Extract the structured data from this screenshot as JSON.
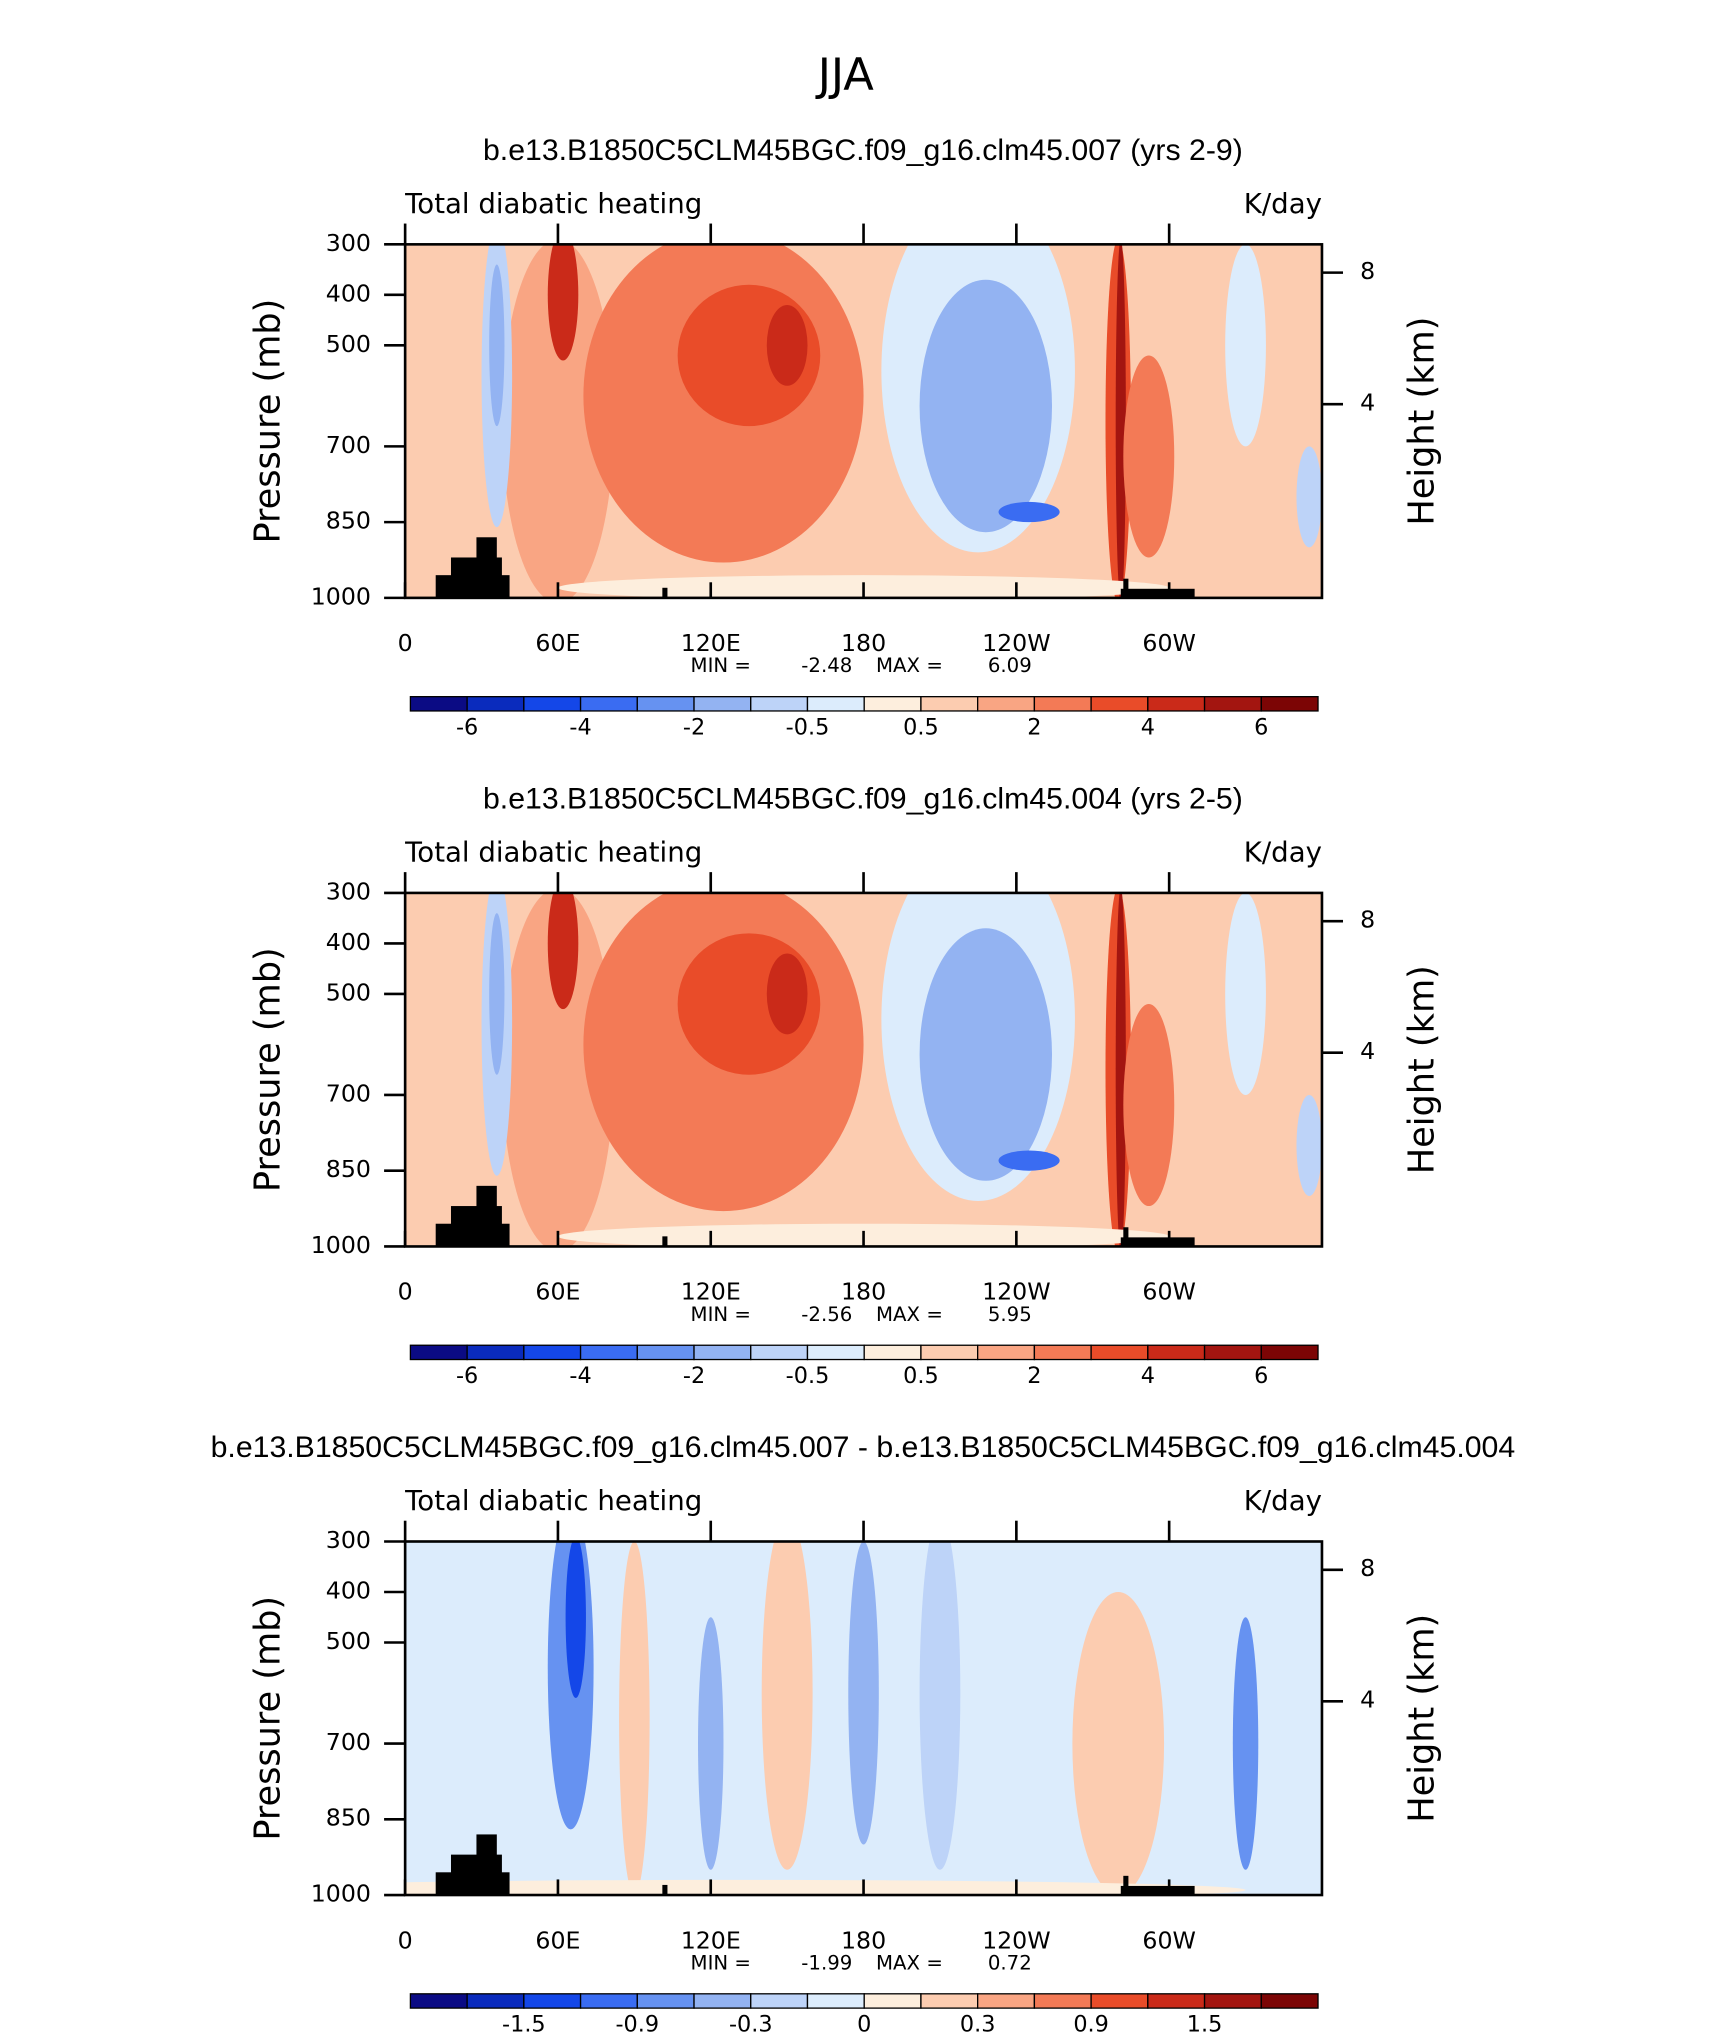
{
  "title": "JJA",
  "chart_data": [
    {
      "type": "contour",
      "title": "b.e13.B1850C5CLM45BGC.f09_g16.clm45.007 (yrs 2-9)",
      "left_label": "Total diabatic heating",
      "right_label": "K/day",
      "ylabel": "Pressure (mb)",
      "y2label": "Height (km)",
      "xlim": [
        0,
        360
      ],
      "xticks": [
        0,
        {
          "value": 60,
          "label": "60E"
        },
        {
          "value": 120,
          "label": "120E"
        },
        180,
        {
          "value": 240,
          "label": "120W"
        },
        {
          "value": 300,
          "label": "60W"
        }
      ],
      "ylim": [
        1000,
        300
      ],
      "yticks": [
        300,
        400,
        500,
        700,
        850,
        1000
      ],
      "y2ticks": [
        4,
        8
      ],
      "min_label": "MIN =",
      "min": -2.48,
      "max_label": "MAX =",
      "max": 6.09,
      "levels": [
        -6,
        -4,
        -2,
        -0.5,
        0.5,
        2,
        4,
        6
      ],
      "colors": [
        "#0b0b84",
        "#0a2bbd",
        "#1447e8",
        "#3a6cf2",
        "#6692f1",
        "#93b3f2",
        "#bdd3f8",
        "#dcecfc",
        "#fdeedd",
        "#fcccb0",
        "#f9a583",
        "#f37a56",
        "#e94c29",
        "#ca2a19",
        "#a31510",
        "#7c0505"
      ]
    },
    {
      "type": "contour",
      "title": "b.e13.B1850C5CLM45BGC.f09_g16.clm45.004 (yrs 2-5)",
      "left_label": "Total diabatic heating",
      "right_label": "K/day",
      "ylabel": "Pressure (mb)",
      "y2label": "Height (km)",
      "xlim": [
        0,
        360
      ],
      "xticks": [
        0,
        {
          "value": 60,
          "label": "60E"
        },
        {
          "value": 120,
          "label": "120E"
        },
        180,
        {
          "value": 240,
          "label": "120W"
        },
        {
          "value": 300,
          "label": "60W"
        }
      ],
      "ylim": [
        1000,
        300
      ],
      "yticks": [
        300,
        400,
        500,
        700,
        850,
        1000
      ],
      "y2ticks": [
        4,
        8
      ],
      "min_label": "MIN =",
      "min": -2.56,
      "max_label": "MAX =",
      "max": 5.95,
      "levels": [
        -6,
        -4,
        -2,
        -0.5,
        0.5,
        2,
        4,
        6
      ],
      "colors": [
        "#0b0b84",
        "#0a2bbd",
        "#1447e8",
        "#3a6cf2",
        "#6692f1",
        "#93b3f2",
        "#bdd3f8",
        "#dcecfc",
        "#fdeedd",
        "#fcccb0",
        "#f9a583",
        "#f37a56",
        "#e94c29",
        "#ca2a19",
        "#a31510",
        "#7c0505"
      ]
    },
    {
      "type": "contour",
      "title": "b.e13.B1850C5CLM45BGC.f09_g16.clm45.007 - b.e13.B1850C5CLM45BGC.f09_g16.clm45.004",
      "left_label": "Total diabatic heating",
      "right_label": "K/day",
      "ylabel": "Pressure (mb)",
      "y2label": "Height (km)",
      "xlim": [
        0,
        360
      ],
      "xticks": [
        0,
        {
          "value": 60,
          "label": "60E"
        },
        {
          "value": 120,
          "label": "120E"
        },
        180,
        {
          "value": 240,
          "label": "120W"
        },
        {
          "value": 300,
          "label": "60W"
        }
      ],
      "ylim": [
        1000,
        300
      ],
      "yticks": [
        300,
        400,
        500,
        700,
        850,
        1000
      ],
      "y2ticks": [
        4,
        8
      ],
      "min_label": "MIN =",
      "min": -1.99,
      "max_label": "MAX =",
      "max": 0.72,
      "levels": [
        -1.5,
        -0.9,
        -0.3,
        0,
        0.3,
        0.9,
        1.5
      ],
      "colors": [
        "#0b0b84",
        "#0a2bbd",
        "#1447e8",
        "#3a6cf2",
        "#6692f1",
        "#93b3f2",
        "#bdd3f8",
        "#dcecfc",
        "#fdeedd",
        "#fcccb0",
        "#f9a583",
        "#f37a56",
        "#e94c29",
        "#ca2a19",
        "#a31510",
        "#7c0505"
      ]
    }
  ]
}
